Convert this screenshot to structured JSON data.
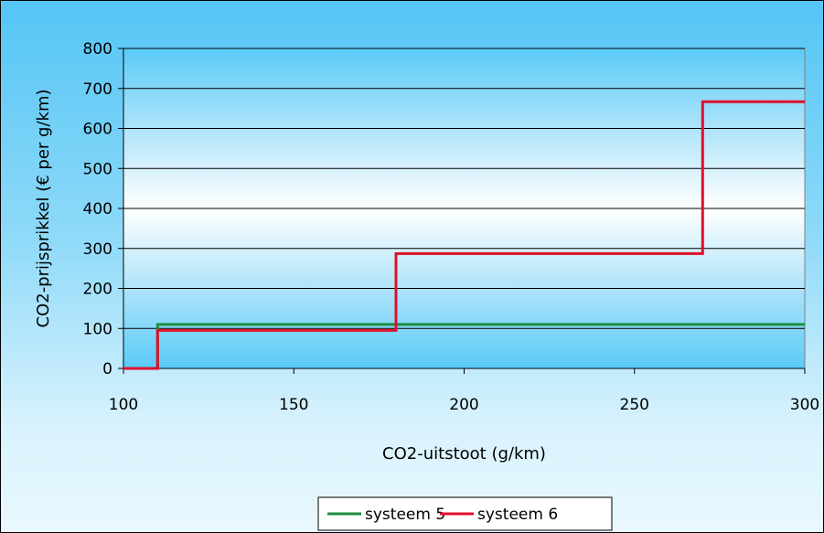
{
  "chart_data": {
    "type": "line",
    "step": true,
    "title": "",
    "xlabel": "CO2-uitstoot (g/km)",
    "ylabel": "CO2-prijsprikkel (€ per g/km)",
    "xlim": [
      100,
      300
    ],
    "ylim": [
      0,
      800
    ],
    "xticks": [
      100,
      150,
      200,
      250,
      300
    ],
    "yticks": [
      0,
      100,
      200,
      300,
      400,
      500,
      600,
      700,
      800
    ],
    "grid": "horizontal",
    "legend_position": "bottom",
    "series": [
      {
        "name": "systeem 5",
        "color": "#1e8e3e",
        "points": [
          [
            110,
            0
          ],
          [
            110,
            110
          ],
          [
            300,
            110
          ]
        ]
      },
      {
        "name": "systeem 6",
        "color": "#e0102c",
        "points": [
          [
            100,
            0
          ],
          [
            110,
            0
          ],
          [
            110,
            95
          ],
          [
            180,
            95
          ],
          [
            180,
            287
          ],
          [
            270,
            287
          ],
          [
            270,
            667
          ],
          [
            300,
            667
          ]
        ]
      }
    ]
  }
}
